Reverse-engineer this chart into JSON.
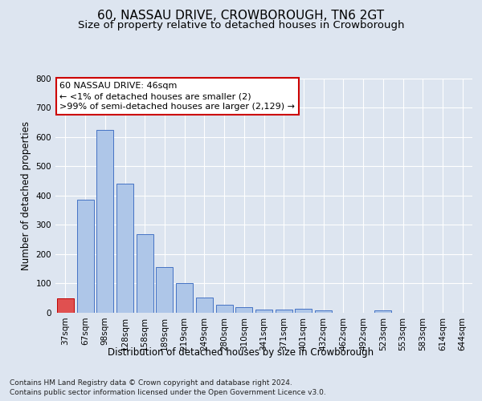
{
  "title": "60, NASSAU DRIVE, CROWBOROUGH, TN6 2GT",
  "subtitle": "Size of property relative to detached houses in Crowborough",
  "xlabel": "Distribution of detached houses by size in Crowborough",
  "ylabel": "Number of detached properties",
  "categories": [
    "37sqm",
    "67sqm",
    "98sqm",
    "128sqm",
    "158sqm",
    "189sqm",
    "219sqm",
    "249sqm",
    "280sqm",
    "310sqm",
    "341sqm",
    "371sqm",
    "401sqm",
    "432sqm",
    "462sqm",
    "492sqm",
    "523sqm",
    "553sqm",
    "583sqm",
    "614sqm",
    "644sqm"
  ],
  "values": [
    48,
    385,
    623,
    440,
    268,
    155,
    100,
    52,
    28,
    20,
    12,
    12,
    15,
    7,
    0,
    0,
    8,
    0,
    0,
    0,
    0
  ],
  "bar_color": "#aec6e8",
  "bar_edge_color": "#4472c4",
  "highlight_bar_color": "#e05050",
  "highlight_index": 0,
  "highlight_edge_color": "#c00000",
  "background_color": "#dde5f0",
  "plot_bg_color": "#dde5f0",
  "grid_color": "#ffffff",
  "annotation_box_text": "60 NASSAU DRIVE: 46sqm\n← <1% of detached houses are smaller (2)\n>99% of semi-detached houses are larger (2,129) →",
  "annotation_box_color": "#ffffff",
  "annotation_box_edge_color": "#cc0000",
  "footer_line1": "Contains HM Land Registry data © Crown copyright and database right 2024.",
  "footer_line2": "Contains public sector information licensed under the Open Government Licence v3.0.",
  "ylim": [
    0,
    800
  ],
  "yticks": [
    0,
    100,
    200,
    300,
    400,
    500,
    600,
    700,
    800
  ],
  "title_fontsize": 11,
  "subtitle_fontsize": 9.5,
  "axis_label_fontsize": 8.5,
  "tick_fontsize": 7.5,
  "annotation_fontsize": 8,
  "footer_fontsize": 6.5
}
